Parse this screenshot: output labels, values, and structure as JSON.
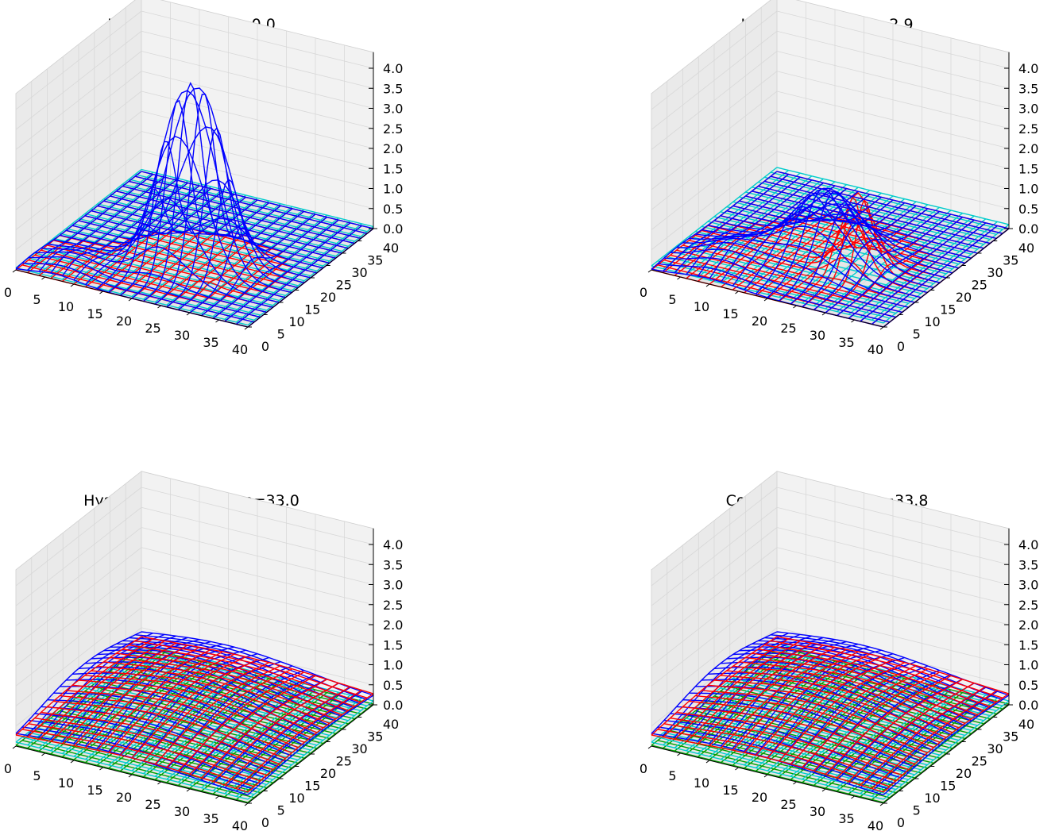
{
  "figure": {
    "title": "",
    "zlim": [
      0,
      4.4
    ],
    "xlim": [
      0,
      40
    ],
    "ylim": [
      0,
      40
    ],
    "x_ticks": [
      "0",
      "5",
      "10",
      "15",
      "20",
      "25",
      "30",
      "35",
      "40"
    ],
    "y_ticks": [
      "0",
      "5",
      "10",
      "15",
      "20",
      "25",
      "30",
      "35",
      "40"
    ],
    "z_ticks": [
      "0.0",
      "0.5",
      "1.0",
      "1.5",
      "2.0",
      "2.5",
      "3.0",
      "3.5",
      "4.0"
    ],
    "colors": {
      "blue": "#0000ff",
      "red": "#ff0000",
      "cyan": "#00cccc",
      "green": "#00a000",
      "pane_side": "#eaeaea",
      "pane_back": "#f2f2f2",
      "grid": "#d8d8d8"
    }
  },
  "chart_data": [
    {
      "type": "surface-wireframe",
      "title": "Initial value, time=0.0",
      "grid": true,
      "series": [
        {
          "name": "",
          "color": "blue",
          "peaks": [
            {
              "x": 20,
              "y": 14,
              "amp": 3.1,
              "sigma": 3.5
            },
            {
              "x": 25,
              "y": 16,
              "amp": 3.0,
              "sigma": 3.5
            },
            {
              "x": 7,
              "y": 5,
              "amp": 0.3,
              "sigma": 4
            }
          ]
        },
        {
          "name": "",
          "color": "cyan",
          "flat_level": 0.05
        },
        {
          "name": "",
          "color": "red",
          "peaks": [
            {
              "x": 28,
              "y": 10,
              "amp": 0.08,
              "sigma": 1.2
            }
          ]
        }
      ]
    },
    {
      "type": "surface-wireframe",
      "title": "Initial phase, time=2.9",
      "grid": true,
      "series": [
        {
          "name": "",
          "color": "blue",
          "peaks": [
            {
              "x": 21,
              "y": 17,
              "amp": 1.7,
              "sigma": 5
            },
            {
              "x": 10,
              "y": 8,
              "amp": 0.5,
              "sigma": 5
            }
          ]
        },
        {
          "name": "",
          "color": "cyan",
          "flat_level": 0.1
        },
        {
          "name": "",
          "color": "red",
          "peaks": [
            {
              "x": 27,
              "y": 16,
              "amp": 1.9,
              "sigma": 2.5
            }
          ]
        }
      ]
    },
    {
      "type": "surface-wireframe",
      "title": "Hysterical phase, time=33.0",
      "grid": true,
      "series": [
        {
          "name": "",
          "color": "blue",
          "peaks": [
            {
              "x": 15,
              "y": 22,
              "amp": 1.0,
              "sigma": 14
            }
          ],
          "base": 0.15
        },
        {
          "name": "",
          "color": "red",
          "peaks": [
            {
              "x": 20,
              "y": 20,
              "amp": 0.6,
              "sigma": 14
            }
          ],
          "base": 0.2
        },
        {
          "name": "",
          "color": "cyan",
          "flat_level": 0.1
        },
        {
          "name": "",
          "color": "green",
          "flat_level": 0.02
        }
      ]
    },
    {
      "type": "surface-wireframe",
      "title": "Counter attack, time=33.8",
      "grid": true,
      "series": [
        {
          "name": "",
          "color": "blue",
          "peaks": [
            {
              "x": 15,
              "y": 22,
              "amp": 1.0,
              "sigma": 14
            }
          ],
          "base": 0.15
        },
        {
          "name": "",
          "color": "red",
          "peaks": [
            {
              "x": 20,
              "y": 20,
              "amp": 0.6,
              "sigma": 14
            }
          ],
          "base": 0.2
        },
        {
          "name": "",
          "color": "cyan",
          "flat_level": 0.1
        },
        {
          "name": "",
          "color": "green",
          "flat_level": 0.02
        }
      ]
    }
  ]
}
